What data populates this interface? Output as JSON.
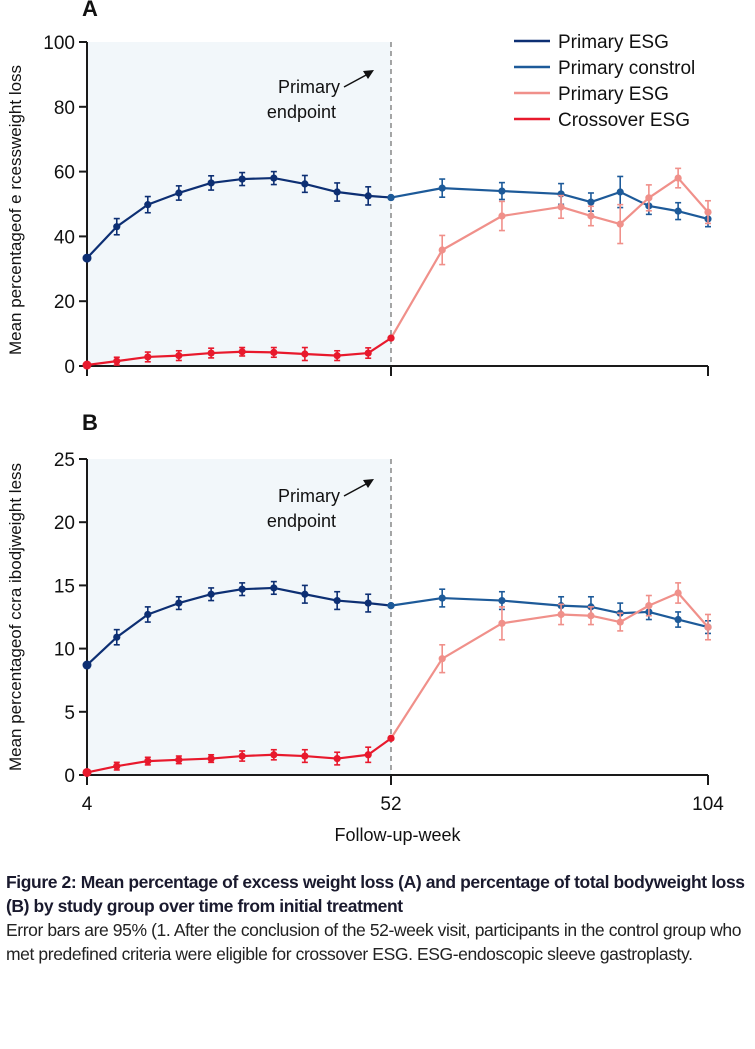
{
  "chart_data": [
    {
      "panel_label": "A",
      "type": "line",
      "title": "",
      "xlabel": "",
      "ylabel": "Mean percentageof e rcessweight loss",
      "ylim": [
        0,
        100
      ],
      "yticks": [
        0,
        20,
        40,
        60,
        80,
        100
      ],
      "xlim": [
        4,
        104
      ],
      "xticks": [
        4,
        52,
        104
      ],
      "grid": false,
      "shaded_region_x": [
        4,
        52
      ],
      "reference_line_x": 52,
      "annotation": {
        "line1": "Primary",
        "line2": "endpoint"
      },
      "series": [
        {
          "name": "Primary ESG",
          "color": "#0d2f73",
          "x": [
            4,
            8.7,
            13.6,
            18.5,
            23.6,
            28.5,
            33.5,
            38.4,
            43.5,
            48.4,
            52
          ],
          "y": [
            33.3,
            43.0,
            49.8,
            53.4,
            56.5,
            57.7,
            58.0,
            56.2,
            53.7,
            52.5,
            52.0
          ],
          "err": [
            0,
            2.5,
            2.5,
            2.2,
            2.2,
            2.0,
            2.0,
            2.6,
            2.8,
            2.8,
            0
          ]
        },
        {
          "name": "Primary constrol",
          "color": "#1d5a99",
          "x": [
            52,
            60.4,
            70.2,
            79.9,
            84.8,
            89.6,
            94.3,
            99.1,
            104
          ],
          "y": [
            52.0,
            54.9,
            54.0,
            53.1,
            50.6,
            53.7,
            49.4,
            47.8,
            45.4
          ],
          "err": [
            0,
            2.8,
            2.6,
            3.2,
            2.8,
            4.8,
            2.6,
            2.6,
            2.4
          ]
        },
        {
          "name": "Primary ESG",
          "color": "#f0908a",
          "x": [
            52,
            60.4,
            70.2,
            79.9,
            84.8,
            89.6,
            94.3,
            99.1,
            104
          ],
          "y": [
            8.6,
            35.8,
            46.3,
            49.1,
            46.3,
            43.8,
            51.9,
            58.0,
            47.5
          ],
          "err": [
            0,
            4.5,
            4.5,
            3.5,
            3.0,
            6.0,
            4.0,
            3.0,
            3.5
          ]
        },
        {
          "name": "Crossover ESG",
          "color": "#e8192c",
          "x": [
            4,
            8.7,
            13.6,
            18.5,
            23.6,
            28.5,
            33.5,
            38.4,
            43.5,
            48.4,
            52
          ],
          "y": [
            0.3,
            1.5,
            2.8,
            3.2,
            4.0,
            4.4,
            4.2,
            3.7,
            3.2,
            4.0,
            8.6
          ],
          "err": [
            0,
            1.2,
            1.5,
            1.5,
            1.5,
            1.3,
            1.5,
            2.0,
            1.5,
            1.6,
            0
          ]
        }
      ],
      "legend": {
        "position": "top-right",
        "entries": [
          {
            "label": "Primary ESG",
            "color": "#0d2f73"
          },
          {
            "label": "Primary constrol",
            "color": "#1d5a99"
          },
          {
            "label": "Primary ESG",
            "color": "#f0908a"
          },
          {
            "label": "Crossover ESG",
            "color": "#e8192c"
          }
        ]
      }
    },
    {
      "panel_label": "B",
      "type": "line",
      "title": "",
      "xlabel": "Follow-up-week",
      "ylabel": "Mean percentageof ccra ibodjweight less",
      "ylim": [
        0,
        25
      ],
      "yticks": [
        0,
        5,
        10,
        15,
        20,
        25
      ],
      "xlim": [
        4,
        104
      ],
      "xticks": [
        4,
        52,
        104
      ],
      "grid": false,
      "shaded_region_x": [
        4,
        52
      ],
      "reference_line_x": 52,
      "annotation": {
        "line1": "Primary",
        "line2": "endpoint"
      },
      "series": [
        {
          "name": "Primary ESG",
          "color": "#0d2f73",
          "x": [
            4,
            8.7,
            13.6,
            18.5,
            23.6,
            28.5,
            33.5,
            38.4,
            43.5,
            48.4,
            52
          ],
          "y": [
            8.7,
            10.9,
            12.7,
            13.6,
            14.3,
            14.7,
            14.8,
            14.3,
            13.8,
            13.6,
            13.4
          ],
          "err": [
            0,
            0.6,
            0.6,
            0.5,
            0.5,
            0.5,
            0.5,
            0.7,
            0.7,
            0.7,
            0
          ]
        },
        {
          "name": "Primary constrol",
          "color": "#1d5a99",
          "x": [
            52,
            60.4,
            70.2,
            79.9,
            84.8,
            89.6,
            94.3,
            99.1,
            104
          ],
          "y": [
            13.4,
            14.0,
            13.8,
            13.4,
            13.3,
            12.8,
            12.9,
            12.3,
            11.7
          ],
          "err": [
            0,
            0.7,
            0.7,
            0.7,
            0.8,
            0.8,
            0.6,
            0.6,
            0.5
          ]
        },
        {
          "name": "Primary ESG",
          "color": "#f0908a",
          "x": [
            52,
            60.4,
            70.2,
            79.9,
            84.8,
            89.6,
            94.3,
            99.1,
            104
          ],
          "y": [
            2.9,
            9.2,
            12.0,
            12.7,
            12.6,
            12.1,
            13.4,
            14.4,
            11.7
          ],
          "err": [
            0,
            1.1,
            1.3,
            0.8,
            0.7,
            0.7,
            0.8,
            0.8,
            1.0
          ]
        },
        {
          "name": "Crossover ESG",
          "color": "#e8192c",
          "x": [
            4,
            8.7,
            13.6,
            18.5,
            23.6,
            28.5,
            33.5,
            38.4,
            43.5,
            48.4,
            52
          ],
          "y": [
            0.2,
            0.7,
            1.1,
            1.2,
            1.3,
            1.5,
            1.6,
            1.5,
            1.3,
            1.6,
            2.9
          ],
          "err": [
            0,
            0.3,
            0.3,
            0.3,
            0.3,
            0.4,
            0.4,
            0.5,
            0.5,
            0.6,
            0
          ]
        }
      ]
    }
  ],
  "caption": {
    "title": "Figure 2: Mean percentage of excess weight loss (A)  and percentage of total bodyweight loss (B) by study group over time from initial treatment",
    "body": "Error bars are 95% (1. After the conclusion of the 52-week visit, participants in the control group who met predefined criteria were eligible for crossover ESG. ESG-endoscopic sleeve gastroplasty."
  },
  "style": {
    "shade_color": "#f2f7fa",
    "axis_color": "#1a1a1a",
    "ref_line_color": "#888888"
  }
}
